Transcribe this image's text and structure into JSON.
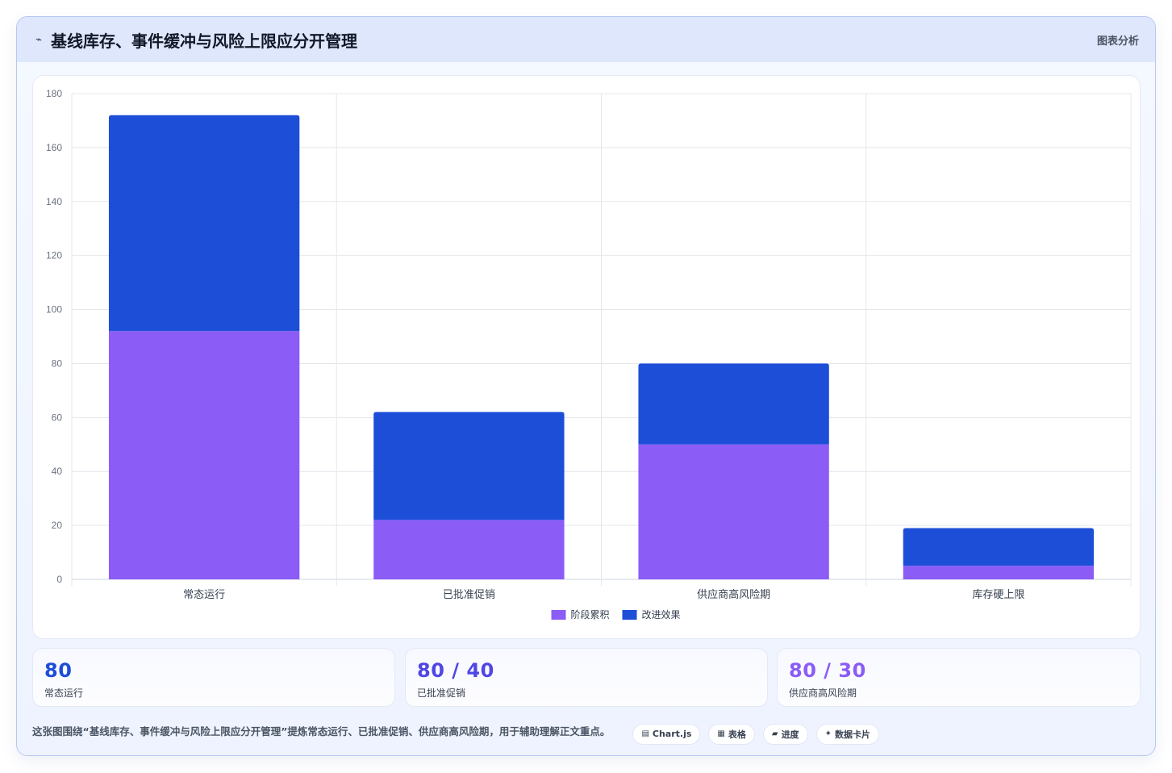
{
  "header": {
    "title": "基线库存、事件缓冲与风险上限应分开管理",
    "title_icon": "trend-icon",
    "tag": "图表分析"
  },
  "chart_data": {
    "type": "bar",
    "stacked": true,
    "categories": [
      "常态运行",
      "已批准促销",
      "供应商高风险期",
      "库存硬上限"
    ],
    "series": [
      {
        "name": "阶段累积",
        "color": "#8b5cf6",
        "values": [
          92,
          22,
          50,
          5
        ]
      },
      {
        "name": "改进效果",
        "color": "#1d4ed8",
        "values": [
          80,
          40,
          30,
          14
        ]
      }
    ],
    "ylim": [
      0,
      180
    ],
    "yticks": [
      0,
      20,
      40,
      60,
      80,
      100,
      120,
      140,
      160,
      180
    ],
    "grid": true,
    "legend": "bottom"
  },
  "kpis": [
    {
      "value": "80",
      "label": "常态运行",
      "color": "#1d4ed8"
    },
    {
      "value": "80 / 40",
      "label": "已批准促销",
      "color": "#4f46e5"
    },
    {
      "value": "80 / 30",
      "label": "供应商高风险期",
      "color": "#8b5cf6"
    }
  ],
  "footer": {
    "text": "这张图围绕“基线库存、事件缓冲与风险上限应分开管理”提炼常态运行、已批准促销、供应商高风险期，用于辅助理解正文重点。",
    "chips": [
      {
        "icon": "▤",
        "label": "Chart.js"
      },
      {
        "icon": "▦",
        "label": "表格"
      },
      {
        "icon": "▰",
        "label": "进度"
      },
      {
        "icon": "✦",
        "label": "数据卡片"
      }
    ]
  }
}
